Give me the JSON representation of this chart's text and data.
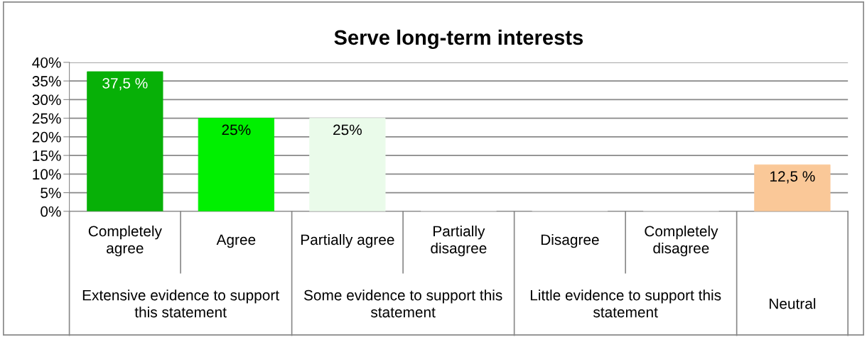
{
  "chart_data": {
    "type": "bar",
    "title": "Serve long-term interests",
    "categories": [
      "Completely agree",
      "Agree",
      "Partially agree",
      "Partially disagree",
      "Disagree",
      "Completely disagree",
      null
    ],
    "values": [
      37.5,
      25,
      25,
      0,
      0,
      0,
      12.5
    ],
    "colors": [
      "#07b007",
      "#00f000",
      "#eafbea",
      "#e0e0e0",
      "#e0e0e0",
      "#e0e0e0",
      "#fac898"
    ],
    "value_labels": [
      "37,5 %",
      "25%",
      "25%",
      null,
      null,
      null,
      "12,5 %"
    ],
    "annotations": [
      "Extensive evidence to support this statement",
      "Some evidence to support this statement",
      "Little evidence to support this statement",
      "Neutral"
    ],
    "ylim": [
      0,
      40
    ],
    "yticks": [
      {
        "value": 0,
        "label": "0%"
      },
      {
        "value": 5,
        "label": "5%"
      },
      {
        "value": 10,
        "label": "10%"
      },
      {
        "value": 15,
        "label": "15%"
      },
      {
        "value": 20,
        "label": "20%"
      },
      {
        "value": 25,
        "label": "25%"
      },
      {
        "value": 30,
        "label": "30%"
      },
      {
        "value": 35,
        "label": "35%"
      },
      {
        "value": 40,
        "label": "40%"
      }
    ],
    "grid": "y"
  }
}
